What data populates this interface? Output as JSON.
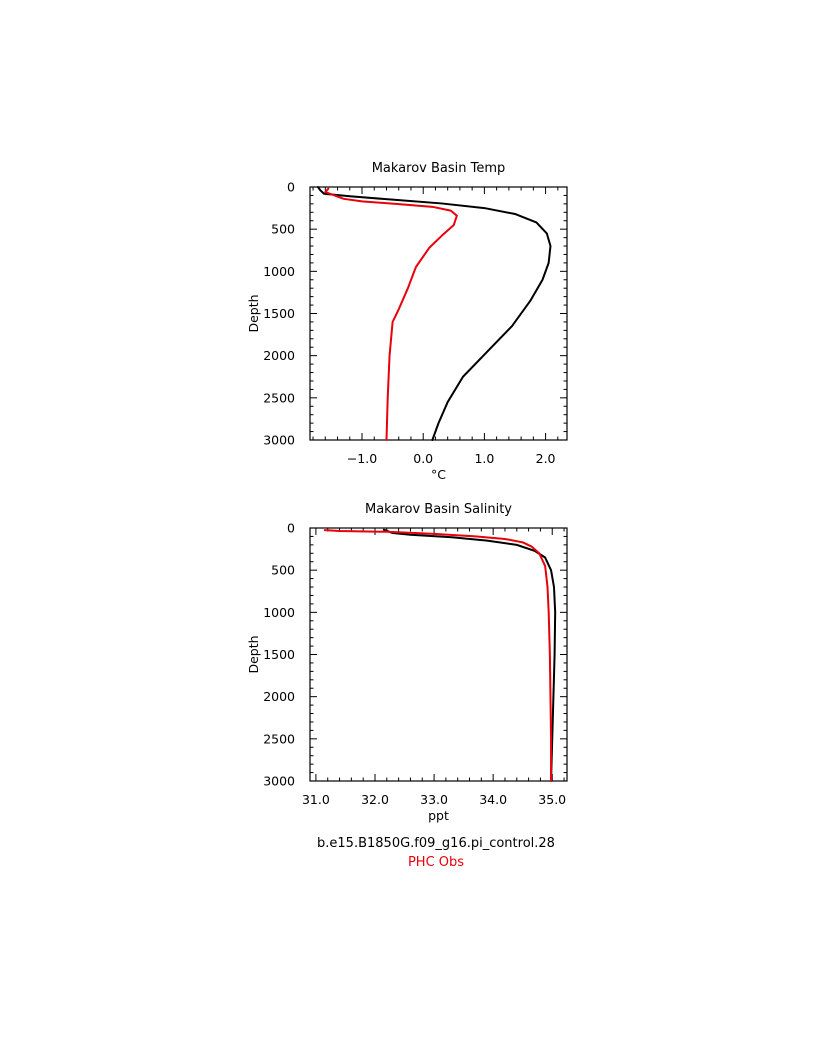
{
  "chart_data": [
    {
      "type": "line",
      "title": "Makarov Basin Temp",
      "xlabel": "°C",
      "ylabel": "Depth",
      "xlim": [
        -1.85,
        2.35
      ],
      "ylim": [
        3000,
        0
      ],
      "y_inverted": true,
      "xticks": [
        -1.0,
        0.0,
        1.0,
        2.0
      ],
      "xtick_labels": [
        "−1.0",
        "0.0",
        "1.0",
        "2.0"
      ],
      "yticks": [
        0,
        500,
        1000,
        1500,
        2000,
        2500,
        3000
      ],
      "ytick_labels": [
        "0",
        "500",
        "1000",
        "1500",
        "2000",
        "2500",
        "3000"
      ],
      "grid": false,
      "series": [
        {
          "color": "#000000",
          "points": [
            [
              -1.72,
              0
            ],
            [
              -1.68,
              40
            ],
            [
              -1.62,
              80
            ],
            [
              -1.2,
              110
            ],
            [
              -0.5,
              150
            ],
            [
              0.3,
              195
            ],
            [
              1.0,
              250
            ],
            [
              1.5,
              320
            ],
            [
              1.85,
              420
            ],
            [
              2.02,
              550
            ],
            [
              2.08,
              700
            ],
            [
              2.05,
              900
            ],
            [
              1.95,
              1100
            ],
            [
              1.75,
              1350
            ],
            [
              1.45,
              1650
            ],
            [
              1.05,
              1950
            ],
            [
              0.65,
              2250
            ],
            [
              0.4,
              2550
            ],
            [
              0.25,
              2800
            ],
            [
              0.15,
              3000
            ]
          ]
        },
        {
          "color": "#e8000b",
          "points": [
            [
              -1.55,
              20
            ],
            [
              -1.6,
              60
            ],
            [
              -1.45,
              100
            ],
            [
              -1.3,
              140
            ],
            [
              -1.0,
              170
            ],
            [
              -0.45,
              200
            ],
            [
              0.15,
              235
            ],
            [
              0.45,
              280
            ],
            [
              0.55,
              340
            ],
            [
              0.5,
              450
            ],
            [
              0.3,
              580
            ],
            [
              0.1,
              720
            ],
            [
              -0.12,
              950
            ],
            [
              -0.25,
              1200
            ],
            [
              -0.4,
              1450
            ],
            [
              -0.5,
              1600
            ],
            [
              -0.55,
              2000
            ],
            [
              -0.58,
              2500
            ],
            [
              -0.6,
              3000
            ]
          ]
        }
      ]
    },
    {
      "type": "line",
      "title": "Makarov Basin Salinity",
      "xlabel": "ppt",
      "ylabel": "Depth",
      "xlim": [
        30.9,
        35.25
      ],
      "ylim": [
        3000,
        0
      ],
      "y_inverted": true,
      "xticks": [
        31.0,
        32.0,
        33.0,
        34.0,
        35.0
      ],
      "xtick_labels": [
        "31.0",
        "32.0",
        "33.0",
        "34.0",
        "35.0"
      ],
      "yticks": [
        0,
        500,
        1000,
        1500,
        2000,
        2500,
        3000
      ],
      "ytick_labels": [
        "0",
        "500",
        "1000",
        "1500",
        "2000",
        "2500",
        "3000"
      ],
      "grid": false,
      "series": [
        {
          "color": "#000000",
          "points": [
            [
              32.15,
              20
            ],
            [
              32.3,
              60
            ],
            [
              32.6,
              80
            ],
            [
              33.3,
              110
            ],
            [
              33.9,
              150
            ],
            [
              34.4,
              200
            ],
            [
              34.7,
              270
            ],
            [
              34.88,
              350
            ],
            [
              34.98,
              500
            ],
            [
              35.03,
              700
            ],
            [
              35.05,
              1000
            ],
            [
              35.04,
              1500
            ],
            [
              35.02,
              2000
            ],
            [
              35.0,
              2500
            ],
            [
              34.98,
              3000
            ]
          ]
        },
        {
          "color": "#e8000b",
          "points": [
            [
              31.15,
              25
            ],
            [
              31.4,
              35
            ],
            [
              32.2,
              45
            ],
            [
              33.0,
              70
            ],
            [
              33.7,
              100
            ],
            [
              34.2,
              130
            ],
            [
              34.5,
              170
            ],
            [
              34.65,
              220
            ],
            [
              34.78,
              300
            ],
            [
              34.88,
              450
            ],
            [
              34.92,
              700
            ],
            [
              34.94,
              1000
            ],
            [
              34.96,
              1500
            ],
            [
              34.97,
              2000
            ],
            [
              34.98,
              2500
            ],
            [
              34.98,
              3000
            ]
          ]
        }
      ]
    }
  ],
  "legend": {
    "model_label": "b.e15.B1850G.f09_g16.pi_control.28",
    "obs_label": "PHC Obs",
    "model_color": "#000000",
    "obs_color": "#e8000b"
  }
}
